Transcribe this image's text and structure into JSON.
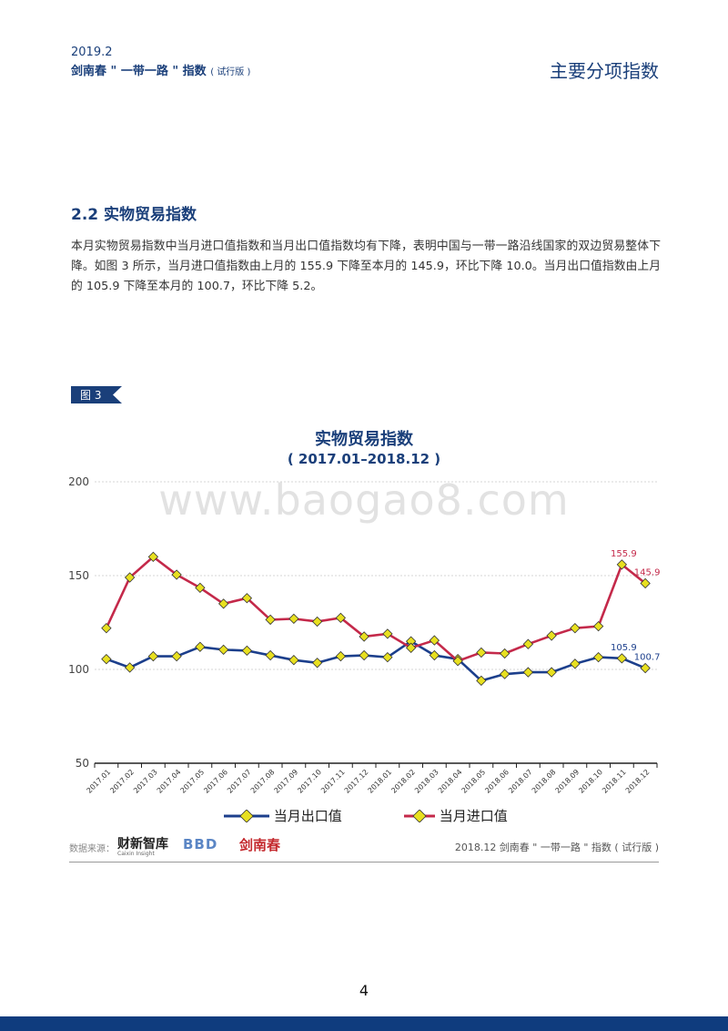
{
  "header": {
    "year": "2019.2",
    "title": "剑南春 \" 一带一路 \" 指数",
    "title_note": "( 试行版 )",
    "section_label": "主要分项指数"
  },
  "section": {
    "title": "2.2 实物贸易指数",
    "paragraph": "本月实物贸易指数中当月进口值指数和当月出口值指数均有下降，表明中国与一带一路沿线国家的双边贸易整体下降。如图 3 所示，当月进口值指数由上月的 155.9 下降至本月的 145.9，环比下降 10.0。当月出口值指数由上月的 105.9 下降至本月的 100.7，环比下降 5.2。"
  },
  "figure": {
    "tag": "图 3",
    "watermark": "www.baogao8.com"
  },
  "chart_data": {
    "type": "line",
    "title": "实物贸易指数",
    "subtitle": "( 2017.01–2018.12 )",
    "xlabel": "",
    "ylabel": "",
    "ylim": [
      50,
      200
    ],
    "yticks": [
      50,
      100,
      150,
      200
    ],
    "grid": true,
    "legend_position": "bottom",
    "categories": [
      "2017.01",
      "2017.02",
      "2017.03",
      "2017.04",
      "2017.05",
      "2017.06",
      "2017.07",
      "2017.08",
      "2017.09",
      "2017.10",
      "2017.11",
      "2017.12",
      "2018.01",
      "2018.02",
      "2018.03",
      "2018.04",
      "2018.05",
      "2018.06",
      "2018.07",
      "2018.08",
      "2018.09",
      "2018.10",
      "2018.11",
      "2018.12"
    ],
    "series": [
      {
        "name": "当月出口值",
        "color": "#1c3f8c",
        "values": [
          105.5,
          101,
          107,
          107,
          112,
          110.5,
          110,
          107.5,
          105,
          103.5,
          107,
          107.5,
          106.5,
          115,
          107.5,
          105.5,
          94,
          97.5,
          98.5,
          98.5,
          103,
          106.5,
          105.9,
          100.7
        ],
        "labeled_points": [
          {
            "index": 22,
            "text": "105.9"
          },
          {
            "index": 23,
            "text": "100.7"
          }
        ]
      },
      {
        "name": "当月进口值",
        "color": "#c4294a",
        "values": [
          122,
          149,
          160,
          150.5,
          143.5,
          135,
          138,
          126.5,
          127,
          125.5,
          127.5,
          117.5,
          119,
          111.5,
          115.5,
          104.5,
          109,
          108.5,
          113.5,
          118,
          122,
          123,
          155.9,
          145.9
        ],
        "labeled_points": [
          {
            "index": 22,
            "text": "155.9"
          },
          {
            "index": 23,
            "text": "145.9"
          }
        ]
      }
    ]
  },
  "footer": {
    "source_label": "数据来源：",
    "logo1": "财新智库",
    "logo1_sub": "Caixin Insight",
    "logo2": "BBD",
    "logo3": "剑南春",
    "right_text": "2018.12 剑南春 \" 一带一路 \" 指数 ( 试行版 )"
  },
  "page_number": "4"
}
